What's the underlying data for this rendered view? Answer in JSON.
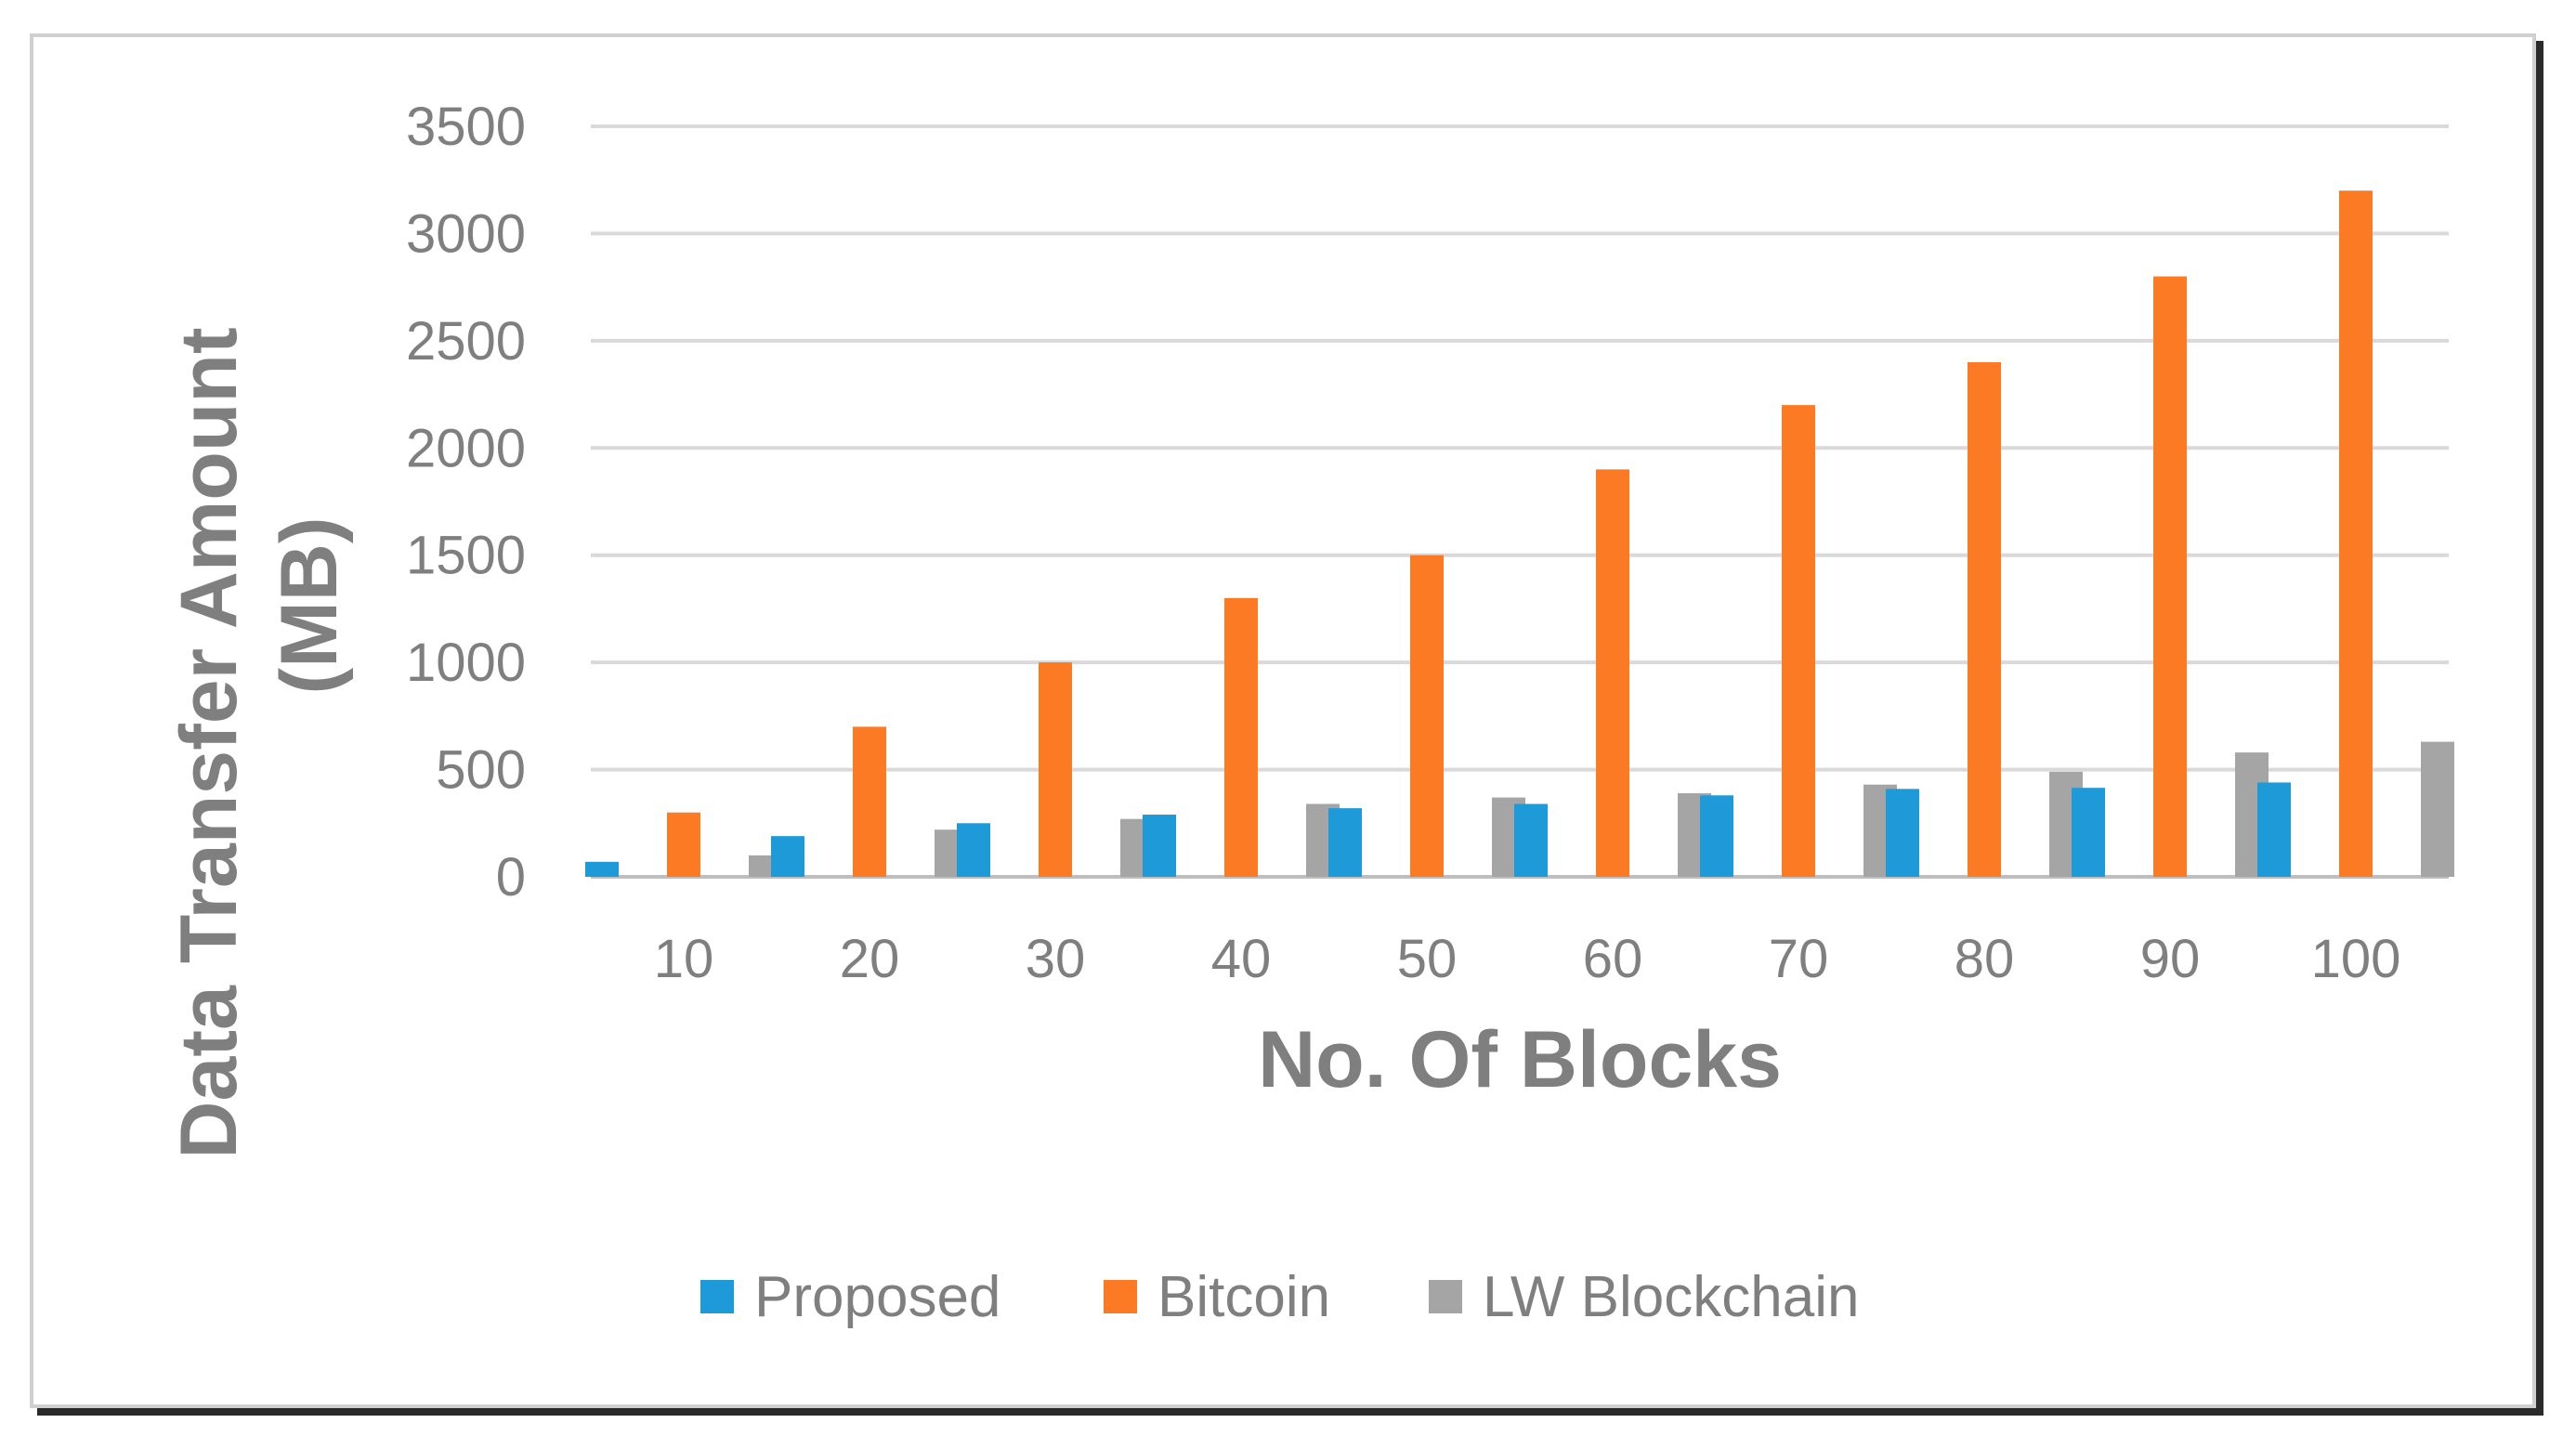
{
  "chart_data": {
    "type": "bar",
    "title": "",
    "xlabel": "No. Of Blocks",
    "ylabel_lines": [
      "Data Transfer Amount",
      "(MB)"
    ],
    "categories": [
      "10",
      "20",
      "30",
      "40",
      "50",
      "60",
      "70",
      "80",
      "90",
      "100"
    ],
    "series": [
      {
        "name": "Proposed",
        "color": "#1f9ad9",
        "values": [
          70,
          190,
          250,
          290,
          320,
          340,
          380,
          410,
          415,
          440
        ]
      },
      {
        "name": "Bitcoin",
        "color": "#fb7a23",
        "values": [
          300,
          700,
          1000,
          1300,
          1500,
          1900,
          2200,
          2400,
          2800,
          3200
        ]
      },
      {
        "name": "LW Blockchain",
        "color": "#a5a5a5",
        "values": [
          100,
          220,
          270,
          340,
          370,
          390,
          430,
          490,
          580,
          630
        ]
      }
    ],
    "ylim": [
      0,
      3500
    ],
    "yticks": [
      "0",
      "500",
      "1000",
      "1500",
      "2000",
      "2500",
      "3000",
      "3500"
    ],
    "grid": true,
    "legend_position": "bottom"
  }
}
